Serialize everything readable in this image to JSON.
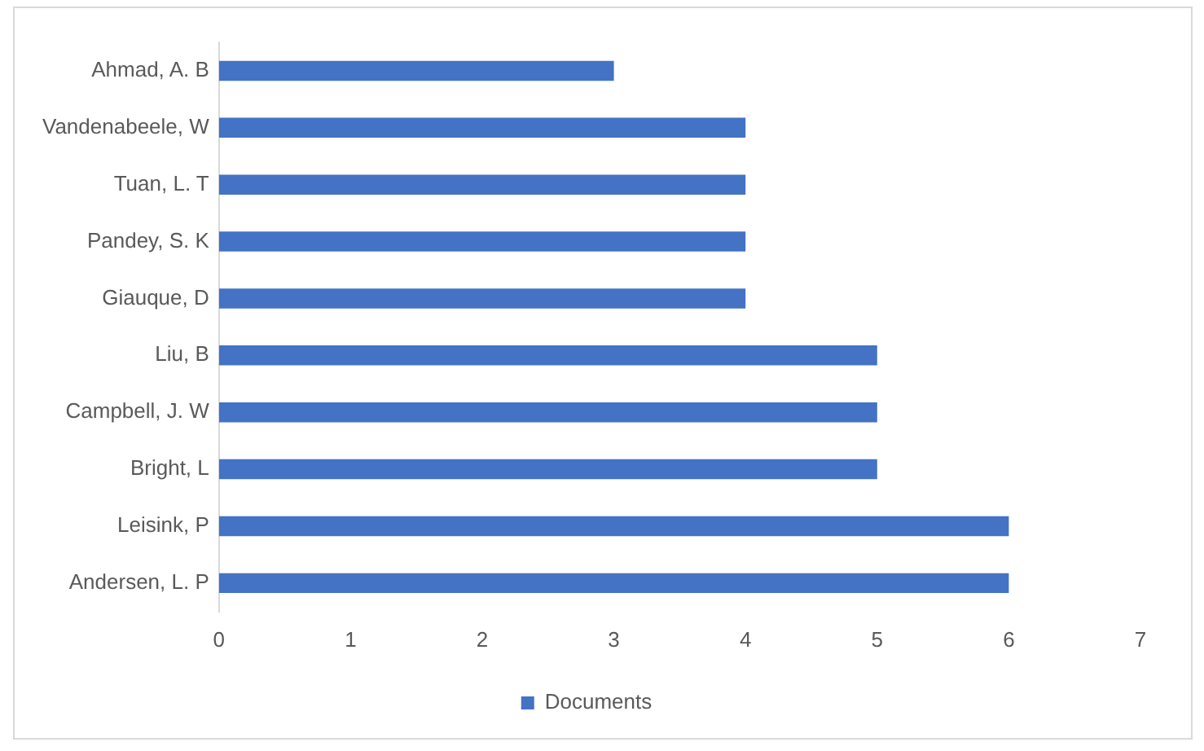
{
  "chart_data": {
    "type": "bar",
    "orientation": "horizontal",
    "categories": [
      "Ahmad, A. B",
      "Vandenabeele, W",
      "Tuan, L. T",
      "Pandey, S. K",
      "Giauque, D",
      "Liu, B",
      "Campbell, J. W",
      "Bright, L",
      "Leisink, P",
      "Andersen, L. P"
    ],
    "series": [
      {
        "name": "Documents",
        "color": "#4472c4",
        "values": [
          3,
          4,
          4,
          4,
          4,
          5,
          5,
          5,
          6,
          6
        ]
      }
    ],
    "xlim": [
      0,
      7
    ],
    "xticks": [
      0,
      1,
      2,
      3,
      4,
      5,
      6,
      7
    ],
    "legend": "bottom",
    "grid": false
  }
}
